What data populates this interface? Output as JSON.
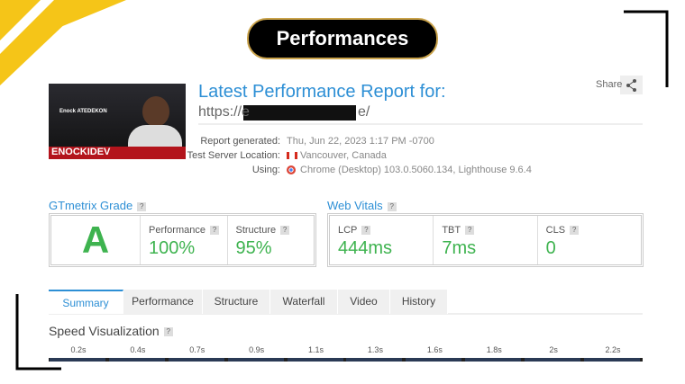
{
  "header": {
    "title": "Performances"
  },
  "report": {
    "heading": "Latest Performance Report for:",
    "url_prefix": "https://e",
    "url_suffix": "e/",
    "share": "Share",
    "thumbnail": {
      "name": "Enock ATEDEKON",
      "brand": "ENOCKIDEV"
    },
    "details": [
      {
        "label": "Report generated:",
        "value": "Thu, Jun 22, 2023 1:17 PM -0700"
      },
      {
        "label": "Test Server Location:",
        "value": "Vancouver, Canada"
      },
      {
        "label": "Using:",
        "value": "Chrome (Desktop) 103.0.5060.134, Lighthouse 9.6.4"
      }
    ]
  },
  "help_icon": "?",
  "grade": {
    "title": "GTmetrix Grade",
    "letter": "A",
    "metrics": [
      {
        "label": "Performance",
        "value": "100%"
      },
      {
        "label": "Structure",
        "value": "95%"
      }
    ]
  },
  "web_vitals": {
    "title": "Web Vitals",
    "metrics": [
      {
        "label": "LCP",
        "value": "444ms"
      },
      {
        "label": "TBT",
        "value": "7ms"
      },
      {
        "label": "CLS",
        "value": "0"
      }
    ]
  },
  "tabs": [
    "Summary",
    "Performance",
    "Structure",
    "Waterfall",
    "Video",
    "History"
  ],
  "speed_visualization": {
    "title": "Speed Visualization",
    "times": [
      "0.2s",
      "0.4s",
      "0.7s",
      "0.9s",
      "1.1s",
      "1.3s",
      "1.6s",
      "1.8s",
      "2s",
      "2.2s"
    ]
  }
}
